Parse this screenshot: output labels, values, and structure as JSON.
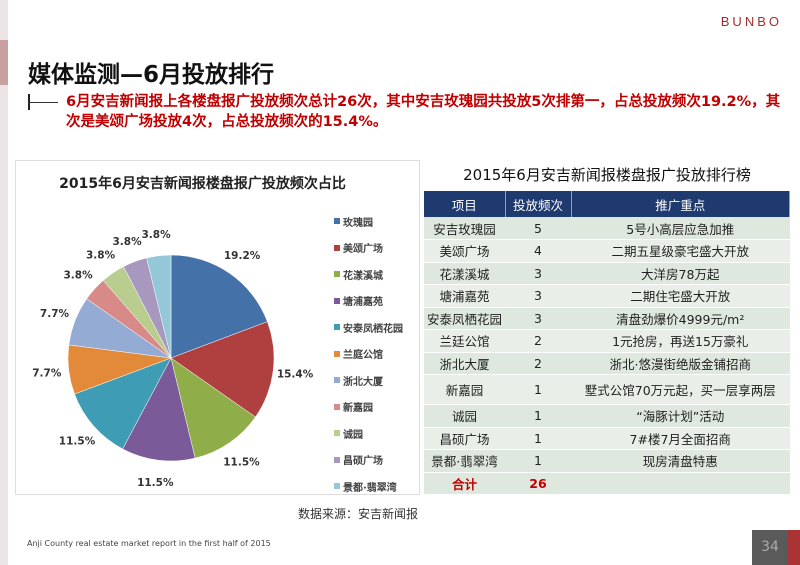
{
  "logo": "BUNBO",
  "title": "媒体监测—6月投放排行",
  "summary": "6月安吉新闻报上各楼盘报广投放频次总计26次，其中安吉玫瑰园共投放5次排第一，占总投放频次19.2%，其次是美颂广场投放4次，占总投放频次的15.4%。",
  "chart_data": {
    "type": "pie",
    "title": "2015年6月安吉新闻报楼盘报广投放频次占比",
    "legend_position": "right",
    "categories": [
      "玫瑰园",
      "美颂广场",
      "花漾溪城",
      "塘浦嘉苑",
      "安泰凤栖花园",
      "兰庭公馆",
      "浙北大厦",
      "新嘉园",
      "诚园",
      "昌硕广场",
      "景都·翡翠湾"
    ],
    "values": [
      19.2,
      15.4,
      11.5,
      11.5,
      11.5,
      7.7,
      7.7,
      3.8,
      3.8,
      3.8,
      3.8
    ],
    "labels": [
      "19.2%",
      "15.4%",
      "11.5%",
      "11.5%",
      "11.5%",
      "7.7%",
      "7.7%",
      "3.8%",
      "3.8%",
      "3.8%",
      "3.8%"
    ],
    "colors": [
      "#4472a8",
      "#b04040",
      "#8fae4a",
      "#7a5a99",
      "#3e9db5",
      "#e28a3a",
      "#94abd4",
      "#d88a88",
      "#b8cd8e",
      "#a898c0",
      "#94c8d8"
    ]
  },
  "source": "数据来源：安吉新闻报",
  "table": {
    "title": "2015年6月安吉新闻报楼盘报广投放排行榜",
    "headers": [
      "项目",
      "投放频次",
      "推广重点"
    ],
    "rows": [
      [
        "安吉玫瑰园",
        "5",
        "5号小高层应急加推"
      ],
      [
        "美颂广场",
        "4",
        "二期五星级豪宅盛大开放"
      ],
      [
        "花漾溪城",
        "3",
        "大洋房78万起"
      ],
      [
        "塘浦嘉苑",
        "3",
        "二期住宅盛大开放"
      ],
      [
        "安泰凤栖花园",
        "3",
        "清盘劲爆价4999元/m²"
      ],
      [
        "兰廷公馆",
        "2",
        "1元抢房，再送15万豪礼"
      ],
      [
        "浙北大厦",
        "2",
        "浙北·悠漫街绝版金铺招商"
      ],
      [
        "新嘉园",
        "1",
        "墅式公馆70万元起，买一层享两层"
      ],
      [
        "诚园",
        "1",
        "“海豚计划”活动"
      ],
      [
        "昌硕广场",
        "1",
        "7#楼7月全面招商"
      ],
      [
        "景都·翡翠湾",
        "1",
        "现房清盘特惠"
      ]
    ],
    "total": [
      "合计",
      "26",
      ""
    ]
  },
  "footer": "Anji County real estate market report in the first half of 2015",
  "page_number": "34"
}
